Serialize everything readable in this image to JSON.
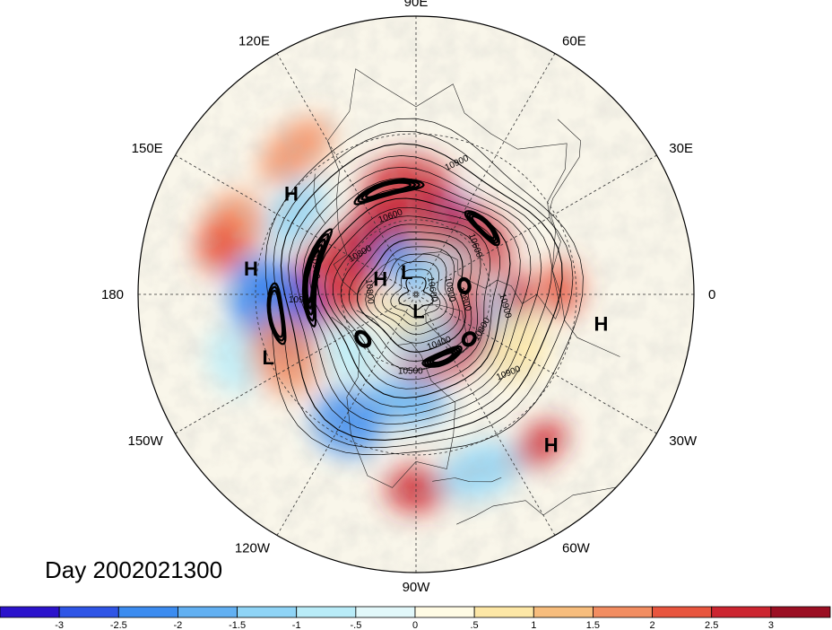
{
  "map": {
    "projection": "north-polar-stereographic",
    "longitude_labels": [
      {
        "text": "90E",
        "lon": 90
      },
      {
        "text": "60E",
        "lon": 60
      },
      {
        "text": "30E",
        "lon": 30
      },
      {
        "text": "0",
        "lon": 0
      },
      {
        "text": "30W",
        "lon": -30
      },
      {
        "text": "60W",
        "lon": -60
      },
      {
        "text": "90W",
        "lon": -90
      },
      {
        "text": "120W",
        "lon": -120
      },
      {
        "text": "150W",
        "lon": -150
      },
      {
        "text": "180",
        "lon": 180
      },
      {
        "text": "150E",
        "lon": 150
      },
      {
        "text": "120E",
        "lon": 120
      }
    ],
    "pressure_centers": [
      {
        "type": "H",
        "lon": 141,
        "lat": 30
      },
      {
        "type": "H",
        "lon": 171,
        "lat": 28
      },
      {
        "type": "H",
        "lon": 156,
        "lat": 74
      },
      {
        "type": "L",
        "lon": 112,
        "lat": 80
      },
      {
        "type": "L",
        "lon": 203,
        "lat": 30
      },
      {
        "type": "L",
        "lon": -81,
        "lat": 83
      },
      {
        "type": "H",
        "lon": -9,
        "lat": 22
      },
      {
        "type": "H",
        "lon": -48,
        "lat": 18
      }
    ],
    "contour_labels": [
      {
        "text": "10900",
        "lon": 72,
        "lat": 38,
        "angle": -25
      },
      {
        "text": "10900",
        "lon": 165,
        "lat": 48,
        "angle": 85
      },
      {
        "text": "10900",
        "lon": 184,
        "lat": 45,
        "angle": 0
      },
      {
        "text": "10900",
        "lon": -8,
        "lat": 55,
        "angle": 75
      },
      {
        "text": "10900",
        "lon": -41,
        "lat": 42,
        "angle": -22
      },
      {
        "text": "10800",
        "lon": -28,
        "lat": 59,
        "angle": -60
      },
      {
        "text": "10800",
        "lon": 145,
        "lat": 63,
        "angle": -30
      },
      {
        "text": "10800",
        "lon": 177,
        "lat": 70,
        "angle": 85
      },
      {
        "text": "10800",
        "lon": -7,
        "lat": 71,
        "angle": 70
      },
      {
        "text": "10800",
        "lon": 8,
        "lat": 77,
        "angle": 80
      },
      {
        "text": "10600",
        "lon": 108,
        "lat": 58,
        "angle": -20
      },
      {
        "text": "10600",
        "lon": 40,
        "lat": 60,
        "angle": 70
      },
      {
        "text": "10600",
        "lon": 18,
        "lat": 84,
        "angle": 80
      },
      {
        "text": "10400",
        "lon": -65,
        "lat": 67,
        "angle": -20
      },
      {
        "text": "10500",
        "lon": -94,
        "lat": 58,
        "angle": 0
      }
    ],
    "color_scale": [
      "#2b13cc",
      "#2f55e6",
      "#3c8cf0",
      "#62b0f2",
      "#8fd4f6",
      "#b9ecf8",
      "#e2f8fa",
      "#fffbe4",
      "#fde7a6",
      "#f7bd7d",
      "#f28d61",
      "#e8553e",
      "#cc2530",
      "#9b0f23"
    ],
    "anomaly_blobs": [
      {
        "lon": 67,
        "lat": 58,
        "r": 50,
        "v": -3
      },
      {
        "lon": 95,
        "lat": 50,
        "r": 52,
        "v": 2.8
      },
      {
        "lon": 84,
        "lat": 70,
        "r": 30,
        "v": 1.5
      },
      {
        "lon": 130,
        "lat": 62,
        "r": 45,
        "v": -3
      },
      {
        "lon": 122,
        "lat": 58,
        "r": 40,
        "v": 2.5
      },
      {
        "lon": 169,
        "lat": 57,
        "r": 55,
        "v": 2.9
      },
      {
        "lon": 188,
        "lat": 38,
        "r": 55,
        "v": -3
      },
      {
        "lon": 180,
        "lat": 30,
        "r": 45,
        "v": -2.5
      },
      {
        "lon": 146,
        "lat": 35,
        "r": 45,
        "v": -1.5
      },
      {
        "lon": 160,
        "lat": 20,
        "r": 40,
        "v": 1.5
      },
      {
        "lon": 166,
        "lat": 18,
        "r": 35,
        "v": 2
      },
      {
        "lon": 200,
        "lat": 20,
        "r": 40,
        "v": -1
      },
      {
        "lon": 130,
        "lat": 22,
        "r": 45,
        "v": 1.5
      },
      {
        "lon": 112,
        "lat": 74,
        "r": 25,
        "v": -2.5
      },
      {
        "lon": 42,
        "lat": 58,
        "r": 45,
        "v": 2.6
      },
      {
        "lon": 28,
        "lat": 70,
        "r": 35,
        "v": -1
      },
      {
        "lon": 15,
        "lat": 70,
        "r": 25,
        "v": 2
      },
      {
        "lon": 2,
        "lat": 35,
        "r": 30,
        "v": 2
      },
      {
        "lon": -8,
        "lat": 55,
        "r": 30,
        "v": -1.5
      },
      {
        "lon": -20,
        "lat": 68,
        "r": 30,
        "v": 2.5
      },
      {
        "lon": -38,
        "lat": 60,
        "r": 30,
        "v": -2.8
      },
      {
        "lon": -28,
        "lat": 45,
        "r": 40,
        "v": 0.5
      },
      {
        "lon": -62,
        "lat": 67,
        "r": 50,
        "v": 2.8
      },
      {
        "lon": -78,
        "lat": 72,
        "r": 40,
        "v": -1.5
      },
      {
        "lon": -95,
        "lat": 48,
        "r": 45,
        "v": -2
      },
      {
        "lon": -118,
        "lat": 35,
        "r": 45,
        "v": -2.5
      },
      {
        "lon": -90,
        "lat": 20,
        "r": 35,
        "v": 2.8
      },
      {
        "lon": -70,
        "lat": 22,
        "r": 45,
        "v": -1.5
      },
      {
        "lon": -50,
        "lat": 20,
        "r": 35,
        "v": 2.5
      },
      {
        "lon": -155,
        "lat": 35,
        "r": 45,
        "v": 1.5
      },
      {
        "lon": -138,
        "lat": 55,
        "r": 40,
        "v": -1
      },
      {
        "lon": 150,
        "lat": 88,
        "r": 20,
        "v": -2.5
      },
      {
        "lon": -120,
        "lat": 80,
        "r": 30,
        "v": 0.5
      },
      {
        "lon": 60,
        "lat": 80,
        "r": 25,
        "v": -1.5
      },
      {
        "lon": 0,
        "lat": 50,
        "r": 25,
        "v": 2.5
      }
    ]
  },
  "caption": "Day 2002021300",
  "colorbar": {
    "colors": [
      "#2b13cc",
      "#2f55e6",
      "#3c8cf0",
      "#62b0f2",
      "#8fd4f6",
      "#b9ecf8",
      "#e2f8fa",
      "#fffbe4",
      "#fde7a6",
      "#f7bd7d",
      "#f28d61",
      "#e8553e",
      "#cc2530",
      "#9b0f23"
    ],
    "ticks": [
      "-3",
      "-2.5",
      "-2",
      "-1.5",
      "-1",
      "-.5",
      "0",
      ".5",
      "1",
      "1.5",
      "2",
      "2.5",
      "3"
    ]
  }
}
